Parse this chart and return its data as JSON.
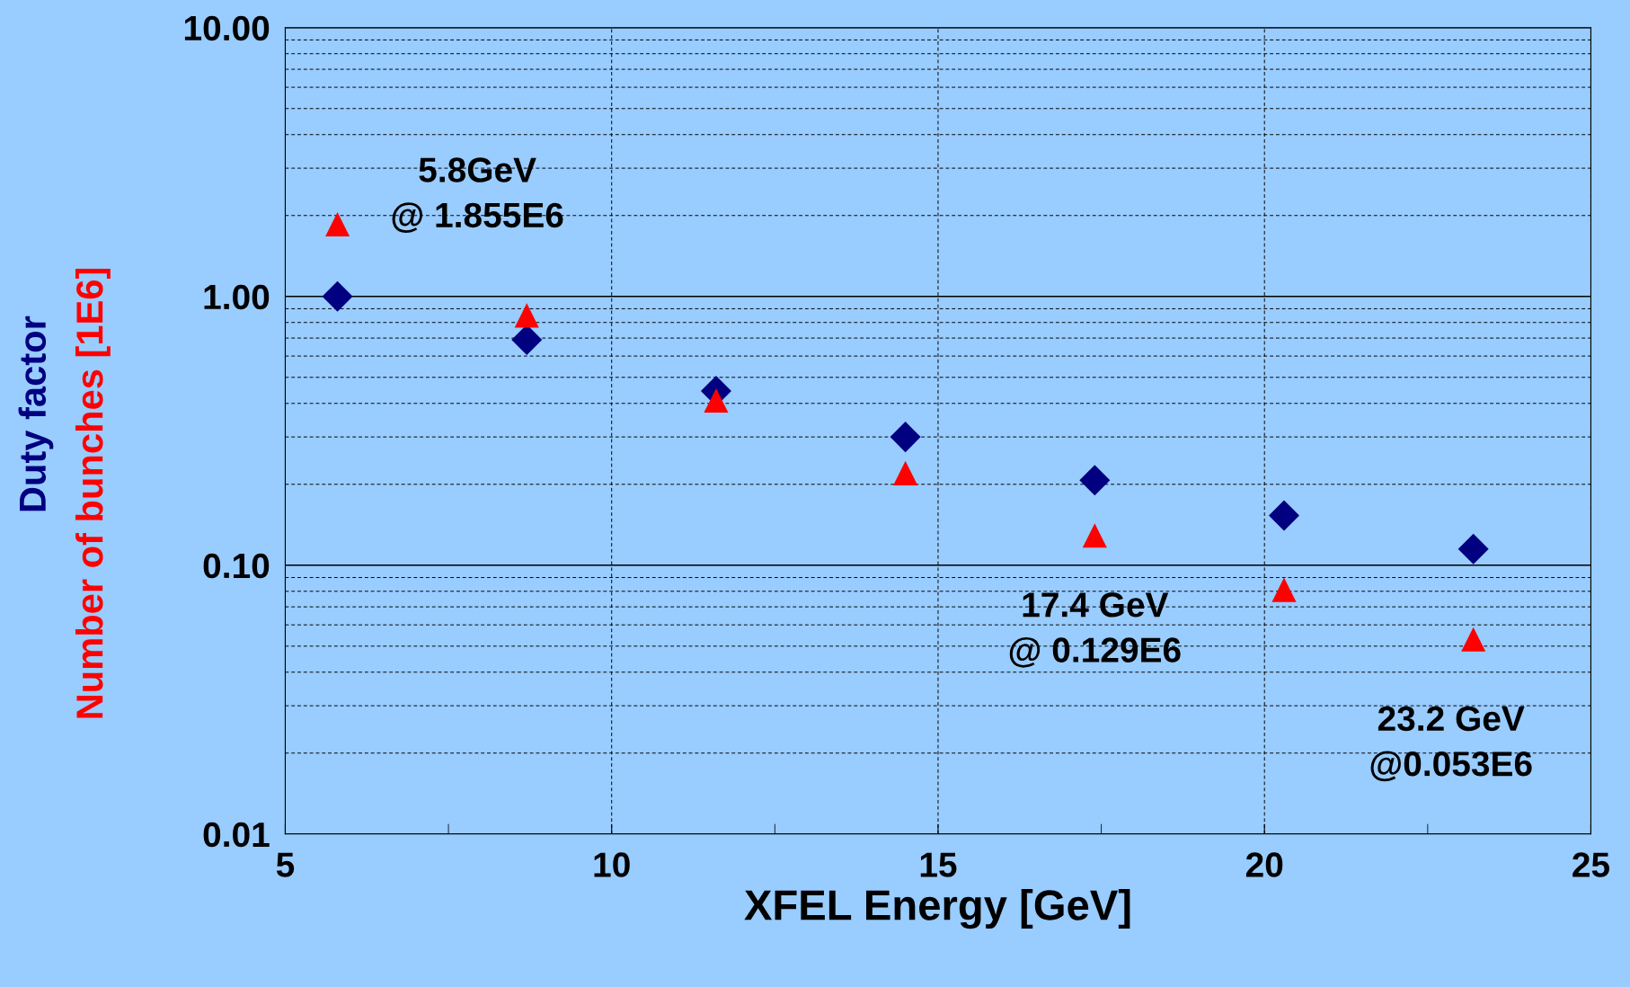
{
  "chart_data": {
    "type": "scatter",
    "xlabel": "XFEL Energy [GeV]",
    "x": [
      5.8,
      8.7,
      11.6,
      14.5,
      17.4,
      20.3,
      23.2
    ],
    "series": [
      {
        "name": "Duty factor",
        "color": "#000080",
        "marker": "diamond",
        "values": [
          1.0,
          0.69,
          0.445,
          0.3,
          0.207,
          0.153,
          0.115
        ]
      },
      {
        "name": "Number of bunches [1E6]",
        "color": "#ff0000",
        "marker": "triangle",
        "values": [
          1.855,
          0.85,
          0.41,
          0.22,
          0.129,
          0.081,
          0.053
        ]
      }
    ],
    "log": "y",
    "xlim": [
      5,
      25
    ],
    "xticks": [
      5,
      10,
      15,
      20,
      25
    ],
    "ylim": [
      0.01,
      10
    ],
    "yticks": [
      {
        "value": 0.01,
        "label": "0.01"
      },
      {
        "value": 0.1,
        "label": "0.10"
      },
      {
        "value": 1,
        "label": "1.00"
      },
      {
        "value": 10,
        "label": "10.00"
      }
    ],
    "grid": true,
    "legend": false,
    "annotations": [
      {
        "text": "5.8GeV\n@ 1.855E6",
        "x": 5.8,
        "y": 1.855
      },
      {
        "text": "17.4 GeV\n@ 0.129E6",
        "x": 17.4,
        "y": 0.129
      },
      {
        "text": "23.2 GeV\n@0.053E6",
        "x": 23.2,
        "y": 0.053
      }
    ]
  }
}
